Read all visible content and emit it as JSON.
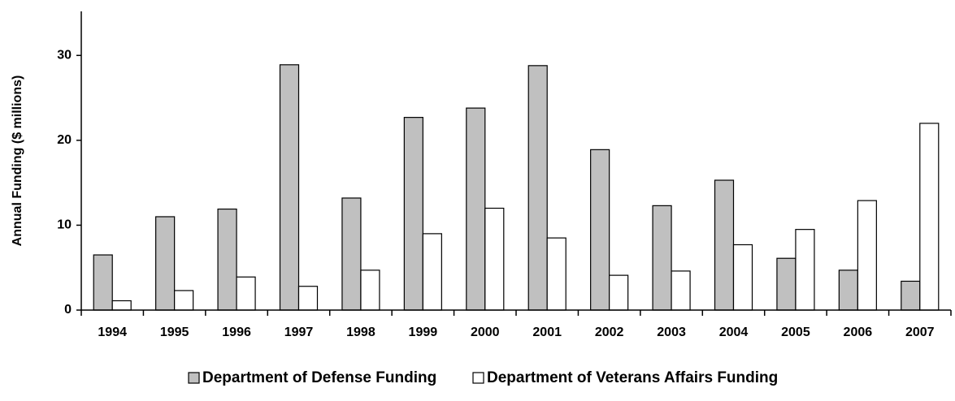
{
  "chart_data": {
    "type": "bar",
    "ylabel": "Annual Funding ($ millions)",
    "categories": [
      "1994",
      "1995",
      "1996",
      "1997",
      "1998",
      "1999",
      "2000",
      "2001",
      "2002",
      "2003",
      "2004",
      "2005",
      "2006",
      "2007"
    ],
    "series": [
      {
        "name": "Department of Defense Funding",
        "color": "#c0c0c0",
        "values": [
          6.5,
          11.0,
          11.9,
          28.9,
          13.2,
          22.7,
          23.8,
          28.8,
          18.9,
          12.3,
          15.3,
          6.1,
          4.7,
          3.4
        ]
      },
      {
        "name": "Department of Veterans Affairs Funding",
        "color": "#ffffff",
        "values": [
          1.1,
          2.3,
          3.9,
          2.8,
          4.7,
          9.0,
          12.0,
          8.5,
          4.1,
          4.6,
          7.7,
          9.5,
          12.9,
          22.0
        ]
      }
    ],
    "ylim": [
      0,
      35
    ],
    "yticks": [
      0,
      10,
      20,
      30
    ],
    "legend": "bottom"
  }
}
